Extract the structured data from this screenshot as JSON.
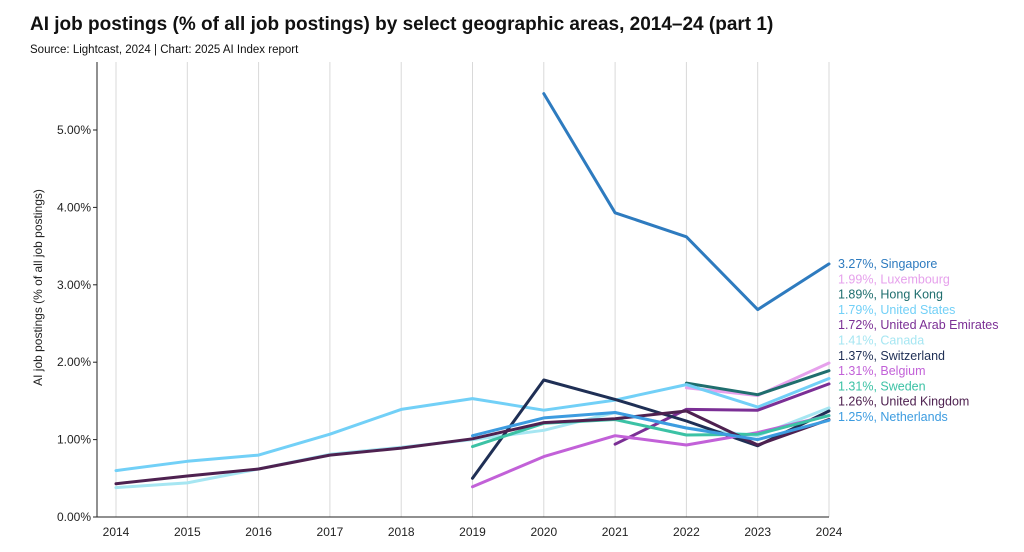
{
  "header": {
    "title": "AI job postings (% of all job postings) by select geographic areas, 2014–24 (part 1)",
    "subtitle": "Source: Lightcast, 2024 | Chart: 2025 AI Index report"
  },
  "chart_data": {
    "type": "line",
    "title": "AI job postings (% of all job postings) by select geographic areas, 2014–24 (part 1)",
    "subtitle": "Source: Lightcast, 2024 | Chart: 2025 AI Index report",
    "xlabel": "",
    "ylabel": "AI job postings (% of all job postings)",
    "x": [
      2014,
      2015,
      2016,
      2017,
      2018,
      2019,
      2020,
      2021,
      2022,
      2023,
      2024
    ],
    "xticks": [
      "2014",
      "2015",
      "2016",
      "2017",
      "2018",
      "2019",
      "2020",
      "2021",
      "2022",
      "2023",
      "2024"
    ],
    "yticks": [
      "0.00%",
      "1.00%",
      "2.00%",
      "3.00%",
      "4.00%",
      "5.00%"
    ],
    "ylim": [
      0,
      5.5
    ],
    "grid": "vertical",
    "legend": "none (end-of-line labels)",
    "series": [
      {
        "name": "Singapore",
        "color": "#2e7bbf",
        "label": "3.27%, Singapore",
        "values": [
          null,
          null,
          null,
          null,
          null,
          null,
          5.47,
          3.93,
          3.62,
          2.68,
          3.27
        ]
      },
      {
        "name": "Luxembourg",
        "color": "#e6a1ec",
        "label": "1.99%, Luxembourg",
        "values": [
          null,
          null,
          null,
          null,
          null,
          null,
          null,
          null,
          1.67,
          1.57,
          1.99
        ]
      },
      {
        "name": "Hong Kong",
        "color": "#1f6e6e",
        "label": "1.89%, Hong Kong",
        "values": [
          null,
          null,
          null,
          null,
          null,
          null,
          null,
          null,
          1.73,
          1.58,
          1.89
        ]
      },
      {
        "name": "United States",
        "color": "#72d0f7",
        "label": "1.79%, United States",
        "values": [
          0.6,
          0.72,
          0.8,
          1.07,
          1.39,
          1.53,
          1.38,
          1.51,
          1.71,
          1.42,
          1.79
        ]
      },
      {
        "name": "United Arab Emirates",
        "color": "#7b2f95",
        "label": "1.72%, United Arab Emirates",
        "values": [
          null,
          null,
          null,
          null,
          null,
          null,
          null,
          0.94,
          1.39,
          1.38,
          1.72
        ]
      },
      {
        "name": "Canada",
        "color": "#a6e6f2",
        "label": "1.41%, Canada",
        "values": [
          0.38,
          0.44,
          0.62,
          0.81,
          0.9,
          1.0,
          1.12,
          1.35,
          1.15,
          1.05,
          1.41
        ]
      },
      {
        "name": "Switzerland",
        "color": "#1f2f55",
        "label": "1.37%, Switzerland",
        "values": [
          null,
          null,
          null,
          null,
          null,
          0.5,
          1.77,
          1.52,
          1.24,
          0.92,
          1.37
        ]
      },
      {
        "name": "Belgium",
        "color": "#c261d8",
        "label": "1.31%, Belgium",
        "values": [
          null,
          null,
          null,
          null,
          null,
          0.39,
          0.78,
          1.05,
          0.93,
          1.09,
          1.31
        ]
      },
      {
        "name": "Sweden",
        "color": "#3cc2a5",
        "label": "1.31%, Sweden",
        "values": [
          null,
          null,
          null,
          null,
          null,
          0.91,
          1.21,
          1.26,
          1.06,
          1.07,
          1.31
        ]
      },
      {
        "name": "United Kingdom",
        "color": "#4e2150",
        "label": "1.26%, United Kingdom",
        "values": [
          0.43,
          0.53,
          0.62,
          0.8,
          0.89,
          1.01,
          1.22,
          1.27,
          1.37,
          0.93,
          1.26
        ]
      },
      {
        "name": "Netherlands",
        "color": "#3d9ce0",
        "label": "1.25%, Netherlands",
        "values": [
          null,
          null,
          null,
          null,
          null,
          1.05,
          1.28,
          1.35,
          1.15,
          1.0,
          1.25
        ]
      }
    ]
  }
}
